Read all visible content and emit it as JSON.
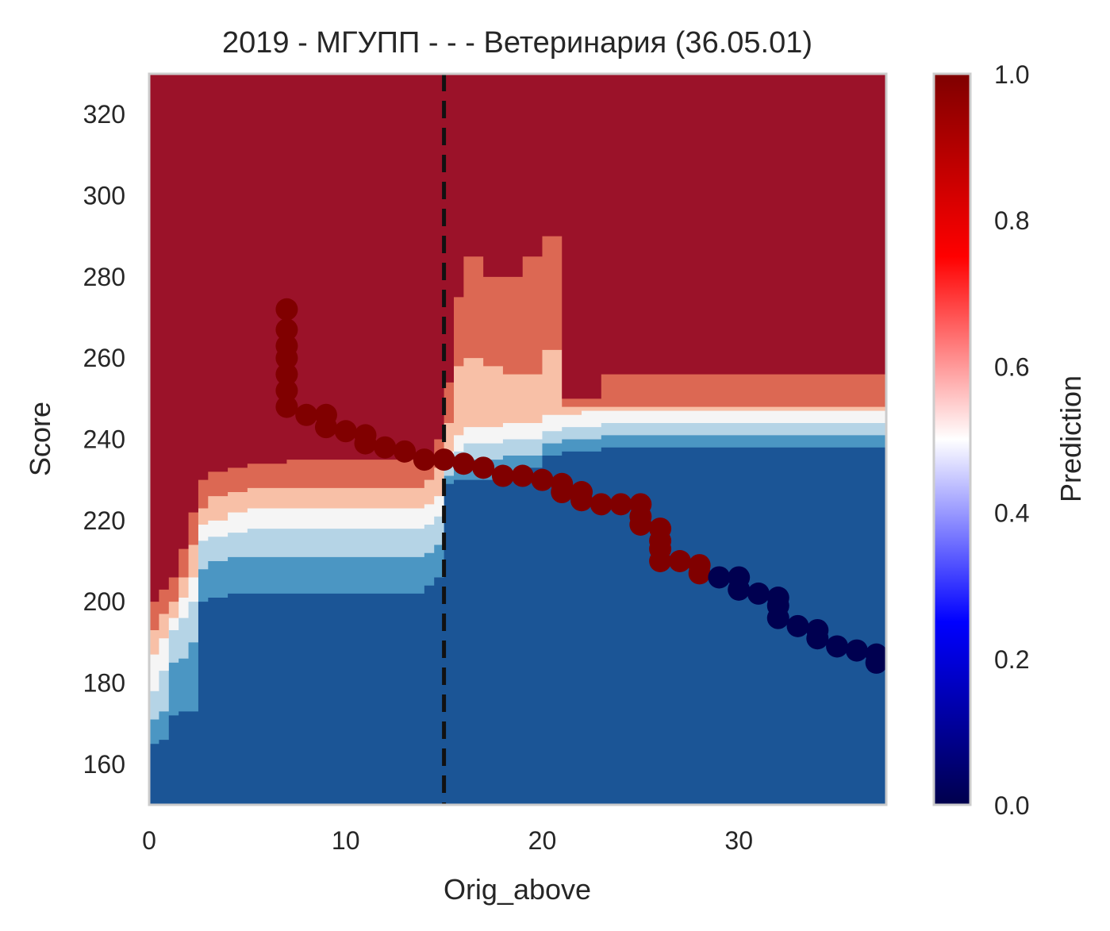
{
  "chart_data": {
    "type": "heatmap",
    "title": "2019 - МГУПП - - - Ветеринария (36.05.01)",
    "xlabel": "Orig_above",
    "ylabel": "Score",
    "xlim": [
      0,
      37.5
    ],
    "ylim": [
      150,
      330
    ],
    "x_ticks": [
      0,
      10,
      20,
      30
    ],
    "y_ticks": [
      160,
      180,
      200,
      220,
      240,
      260,
      280,
      300,
      320
    ],
    "colorbar": {
      "label": "Prediction",
      "range": [
        0,
        1
      ],
      "ticks": [
        "0.0",
        "0.2",
        "0.4",
        "0.6",
        "0.8",
        "1.0"
      ],
      "colormap": "seismic"
    },
    "grid": false,
    "reference_line": {
      "x": 15,
      "style": "dashed",
      "color": "#111111"
    },
    "contour_levels": [
      {
        "level": "≥0.86",
        "color": "#9b1229"
      },
      {
        "level": "0.71–0.86",
        "color": "#dc6853"
      },
      {
        "level": "0.57–0.71",
        "color": "#f8c0a7"
      },
      {
        "level": "0.43–0.57",
        "color": "#f5f5f5"
      },
      {
        "level": "0.29–0.43",
        "color": "#b5d4e6"
      },
      {
        "level": "0.14–0.29",
        "color": "#4b96c3"
      },
      {
        "level": "<0.14",
        "color": "#1b5596"
      }
    ],
    "contour_boundaries_x": [
      0,
      0.5,
      1,
      1.5,
      2,
      2.5,
      3,
      4,
      5,
      6,
      7,
      8,
      9,
      10,
      11,
      12,
      13,
      14,
      14.5,
      15,
      15.5,
      16,
      17,
      18,
      19,
      20,
      21,
      22,
      23,
      24,
      25,
      26,
      27,
      28,
      29,
      30,
      31,
      32,
      33,
      34,
      35,
      36,
      37.5
    ],
    "contour_boundaries_score": {
      "0.14": [
        165,
        166,
        172,
        173,
        173,
        200,
        201,
        202,
        202,
        202,
        202,
        202,
        202,
        202,
        202,
        202,
        202,
        204,
        206,
        229,
        230,
        230,
        230,
        232,
        233,
        236,
        237,
        237,
        238,
        238,
        238,
        238,
        238,
        238,
        238,
        238,
        238,
        238,
        238,
        238,
        238,
        238,
        238
      ],
      "0.29": [
        171,
        173,
        185,
        186,
        190,
        208,
        210,
        211,
        211,
        211,
        211,
        211,
        211,
        211,
        211,
        211,
        211,
        212,
        214,
        231,
        234,
        235,
        235,
        236,
        236,
        239,
        240,
        240,
        241,
        241,
        241,
        241,
        241,
        241,
        241,
        241,
        241,
        241,
        241,
        241,
        241,
        241,
        241
      ],
      "0.43": [
        178,
        183,
        193,
        196,
        200,
        215,
        216,
        217,
        218,
        218,
        218,
        218,
        218,
        218,
        218,
        218,
        218,
        219,
        221,
        234,
        237,
        239,
        239,
        240,
        240,
        242,
        243,
        243,
        244,
        244,
        244,
        244,
        244,
        244,
        244,
        244,
        244,
        244,
        244,
        244,
        244,
        244,
        244
      ],
      "0.57": [
        187,
        191,
        196,
        201,
        206,
        219,
        220,
        222,
        223,
        223,
        223,
        223,
        223,
        223,
        223,
        223,
        223,
        224,
        226,
        237,
        241,
        243,
        243,
        244,
        244,
        246,
        246,
        247,
        247,
        247,
        247,
        247,
        247,
        247,
        247,
        247,
        247,
        247,
        247,
        247,
        247,
        247,
        247
      ],
      "0.71": [
        193,
        197,
        200,
        206,
        214,
        223,
        226,
        227,
        228,
        228,
        228,
        228,
        228,
        228,
        228,
        228,
        228,
        230,
        233,
        244,
        258,
        260,
        258,
        256,
        256,
        262,
        248,
        248,
        248,
        248,
        248,
        248,
        248,
        248,
        248,
        248,
        248,
        248,
        248,
        248,
        248,
        248,
        248
      ],
      "0.86": [
        200,
        203,
        206,
        213,
        222,
        230,
        232,
        233,
        234,
        234,
        235,
        235,
        235,
        235,
        235,
        235,
        235,
        236,
        240,
        254,
        275,
        285,
        280,
        280,
        285,
        290,
        250,
        250,
        256,
        256,
        256,
        256,
        256,
        256,
        256,
        256,
        256,
        256,
        256,
        256,
        256,
        256,
        256
      ]
    },
    "scatter_points": [
      {
        "x": 7,
        "y": 272,
        "p": 1
      },
      {
        "x": 7,
        "y": 267,
        "p": 1
      },
      {
        "x": 7,
        "y": 263,
        "p": 1
      },
      {
        "x": 7,
        "y": 260,
        "p": 1
      },
      {
        "x": 7,
        "y": 256,
        "p": 1
      },
      {
        "x": 7,
        "y": 252,
        "p": 1
      },
      {
        "x": 7,
        "y": 248,
        "p": 1
      },
      {
        "x": 8,
        "y": 246,
        "p": 1
      },
      {
        "x": 9,
        "y": 246,
        "p": 1
      },
      {
        "x": 9,
        "y": 243,
        "p": 1
      },
      {
        "x": 10,
        "y": 242,
        "p": 1
      },
      {
        "x": 11,
        "y": 241,
        "p": 1
      },
      {
        "x": 11,
        "y": 239,
        "p": 1
      },
      {
        "x": 12,
        "y": 238,
        "p": 1
      },
      {
        "x": 13,
        "y": 237,
        "p": 1
      },
      {
        "x": 14,
        "y": 235,
        "p": 1
      },
      {
        "x": 15,
        "y": 235,
        "p": 1
      },
      {
        "x": 16,
        "y": 234,
        "p": 1
      },
      {
        "x": 17,
        "y": 233,
        "p": 1
      },
      {
        "x": 18,
        "y": 231,
        "p": 1
      },
      {
        "x": 19,
        "y": 231,
        "p": 1
      },
      {
        "x": 20,
        "y": 230,
        "p": 1
      },
      {
        "x": 21,
        "y": 229,
        "p": 1
      },
      {
        "x": 21,
        "y": 227,
        "p": 1
      },
      {
        "x": 22,
        "y": 227,
        "p": 1
      },
      {
        "x": 22,
        "y": 225,
        "p": 1
      },
      {
        "x": 23,
        "y": 224,
        "p": 1
      },
      {
        "x": 24,
        "y": 224,
        "p": 1
      },
      {
        "x": 25,
        "y": 224,
        "p": 1
      },
      {
        "x": 25,
        "y": 221,
        "p": 1
      },
      {
        "x": 25,
        "y": 219,
        "p": 1
      },
      {
        "x": 26,
        "y": 218,
        "p": 1
      },
      {
        "x": 26,
        "y": 215,
        "p": 1
      },
      {
        "x": 26,
        "y": 213,
        "p": 1
      },
      {
        "x": 26,
        "y": 210,
        "p": 1
      },
      {
        "x": 27,
        "y": 210,
        "p": 1
      },
      {
        "x": 28,
        "y": 209,
        "p": 1
      },
      {
        "x": 28,
        "y": 207,
        "p": 1
      },
      {
        "x": 29,
        "y": 206,
        "p": 0
      },
      {
        "x": 30,
        "y": 206,
        "p": 0
      },
      {
        "x": 30,
        "y": 203,
        "p": 0
      },
      {
        "x": 31,
        "y": 202,
        "p": 0
      },
      {
        "x": 32,
        "y": 201,
        "p": 0
      },
      {
        "x": 32,
        "y": 199,
        "p": 0
      },
      {
        "x": 32,
        "y": 196,
        "p": 0
      },
      {
        "x": 33,
        "y": 194,
        "p": 0
      },
      {
        "x": 34,
        "y": 193,
        "p": 0
      },
      {
        "x": 34,
        "y": 191,
        "p": 0
      },
      {
        "x": 35,
        "y": 189,
        "p": 0
      },
      {
        "x": 36,
        "y": 188,
        "p": 0
      },
      {
        "x": 37,
        "y": 187,
        "p": 0
      },
      {
        "x": 37,
        "y": 185,
        "p": 0
      }
    ],
    "point_colors": {
      "1": "#800000",
      "0": "#000050"
    }
  }
}
